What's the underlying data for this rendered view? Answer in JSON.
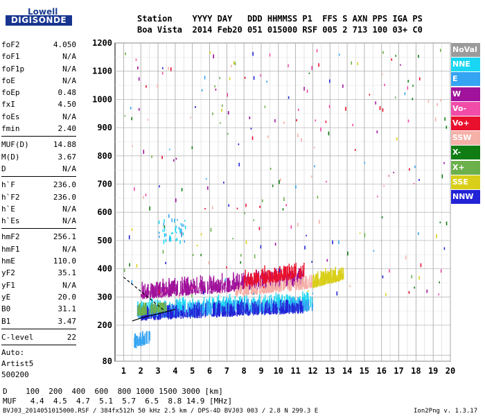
{
  "logo": {
    "line1": "Lowell",
    "line2": "DIGISONDE"
  },
  "header": {
    "row1": "Station    YYYY DAY   DDD HHMMSS P1  FFS S AXN PPS IGA PS",
    "row2": "Boa Vista  2014 Feb20 051 015000 RSF 005 2 713 100 03+ C0"
  },
  "params": [
    {
      "label": "foF2",
      "value": "4.050"
    },
    {
      "label": "foF1",
      "value": "N/A"
    },
    {
      "label": "foF1p",
      "value": "N/A"
    },
    {
      "label": "foE",
      "value": "N/A"
    },
    {
      "label": "foEp",
      "value": "0.48"
    },
    {
      "label": "fxI",
      "value": "4.50"
    },
    {
      "label": "foEs",
      "value": "N/A"
    },
    {
      "label": "fmin",
      "value": "2.40"
    },
    {
      "label": "MUF(D)",
      "value": "14.88"
    },
    {
      "label": "M(D)",
      "value": "3.67"
    },
    {
      "label": "D",
      "value": "N/A"
    },
    {
      "label": "h`F",
      "value": "236.0"
    },
    {
      "label": "h`F2",
      "value": "236.0"
    },
    {
      "label": "h`E",
      "value": "N/A"
    },
    {
      "label": "h`Es",
      "value": "N/A"
    },
    {
      "label": "hmF2",
      "value": "256.1"
    },
    {
      "label": "hmF1",
      "value": "N/A"
    },
    {
      "label": "hmE",
      "value": "110.0"
    },
    {
      "label": "yF2",
      "value": "35.1"
    },
    {
      "label": "yF1",
      "value": "N/A"
    },
    {
      "label": "yE",
      "value": "20.0"
    },
    {
      "label": "B0",
      "value": "31.1"
    },
    {
      "label": "B1",
      "value": "3.47"
    },
    {
      "label": "C-level",
      "value": "22"
    }
  ],
  "autoscale": {
    "line1": "Auto:",
    "line2": "Artist5",
    "line3": "500200"
  },
  "legend": [
    {
      "name": "NoVal",
      "color": "#9b9b9b"
    },
    {
      "name": "NNE",
      "color": "#19d7f2"
    },
    {
      "name": "E",
      "color": "#35a4f2"
    },
    {
      "name": "W",
      "color": "#a0129b"
    },
    {
      "name": "Vo-",
      "color": "#f04ca8"
    },
    {
      "name": "Vo+",
      "color": "#e8102c"
    },
    {
      "name": "SSW",
      "color": "#f5b0a8"
    },
    {
      "name": "X-",
      "color": "#0f7d14"
    },
    {
      "name": "X+",
      "color": "#6cb04c"
    },
    {
      "name": "SSE",
      "color": "#d9cf1a"
    },
    {
      "name": "NNW",
      "color": "#2323d6"
    }
  ],
  "footer": {
    "d_row": "D    100  200  400  600  800 1000 1500 3000 [km]",
    "muf_row": "MUF   4.4  4.5  4.7  5.1  5.7  6.5  8.8 14.9 [MHz]",
    "file_info": "BVJ03_2014051015000.RSF / 384fx512h 50 kHz 2.5 km / DPS-4D BVJ03 003 / 2.8 N 299.3 E",
    "version": "Ion2Png v. 1.3.17"
  },
  "chart_data": {
    "type": "scatter",
    "title": "",
    "xlabel": "",
    "ylabel": "",
    "xlim": [
      0.5,
      20.0
    ],
    "ylim": [
      80,
      1200
    ],
    "x_ticks": [
      1,
      2,
      3,
      4,
      5,
      6,
      7,
      8,
      9,
      10,
      11,
      12,
      13,
      14,
      15,
      16,
      17,
      18,
      19,
      20
    ],
    "y_ticks": [
      80,
      100,
      200,
      300,
      400,
      500,
      600,
      700,
      800,
      900,
      1000,
      1100,
      1200
    ],
    "y_tick_labels": [
      "80",
      "",
      "200",
      "300",
      "400",
      "500",
      "600",
      "700",
      "800",
      "900",
      "1000",
      "1100",
      "1200"
    ],
    "y_scale": "nonlinear (80 to 200 compressed)",
    "grid": true,
    "legend_position": "right",
    "traces": [
      {
        "name": "profile",
        "x": [
          1.5,
          2.0,
          2.5,
          3.0,
          3.5,
          4.0
        ],
        "y": [
          215,
          225,
          233,
          240,
          248,
          256
        ]
      },
      {
        "name": "dashed-extension",
        "x": [
          1.0,
          1.5,
          2.0,
          2.5,
          3.0,
          3.4
        ],
        "y": [
          370,
          345,
          320,
          295,
          270,
          250
        ]
      }
    ],
    "echo_clusters": [
      {
        "direction": "W",
        "x_range": [
          2.0,
          11.5
        ],
        "y_range": [
          290,
          430
        ]
      },
      {
        "direction": "NNE",
        "x_range": [
          1.8,
          12.0
        ],
        "y_range": [
          230,
          320
        ]
      },
      {
        "direction": "E",
        "x_range": [
          1.8,
          12.0
        ],
        "y_range": [
          220,
          300
        ]
      },
      {
        "direction": "NNW",
        "x_range": [
          2.0,
          11.5
        ],
        "y_range": [
          215,
          290
        ]
      },
      {
        "direction": "SSE",
        "x_range": [
          12.0,
          13.8
        ],
        "y_range": [
          330,
          410
        ]
      },
      {
        "direction": "SSW",
        "x_range": [
          7.5,
          12.0
        ],
        "y_range": [
          300,
          380
        ]
      },
      {
        "direction": "Vo+",
        "x_range": [
          8.0,
          11.5
        ],
        "y_range": [
          330,
          440
        ]
      },
      {
        "direction": "X+",
        "x_range": [
          1.8,
          3.5
        ],
        "y_range": [
          230,
          280
        ]
      },
      {
        "direction": "E",
        "x_range": [
          1.6,
          2.6
        ],
        "y_range": [
          120,
          180
        ]
      }
    ]
  }
}
